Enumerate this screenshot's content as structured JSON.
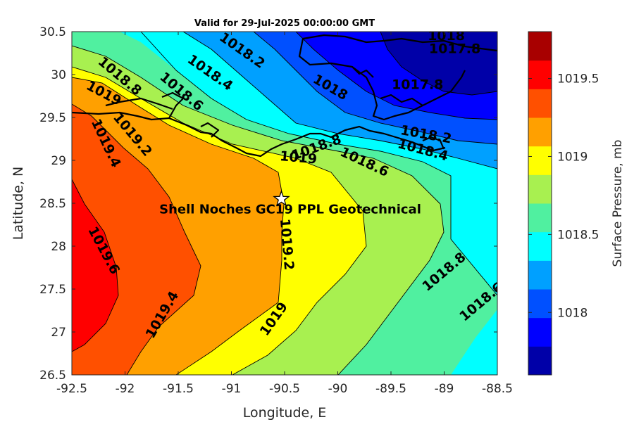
{
  "chart_data": {
    "type": "contour",
    "title": "Valid for 29-Jul-2025 00:00:00 GMT",
    "xlabel": "Longitude, E",
    "ylabel": "Latitude, N",
    "xlim": [
      -92.5,
      -88.5
    ],
    "ylim": [
      26.5,
      30.5
    ],
    "xticks": [
      -92.5,
      -92,
      -91.5,
      -91,
      -90.5,
      -90,
      -89.5,
      -89,
      -88.5
    ],
    "xtick_labels": [
      "-92.5",
      "-92",
      "-91.5",
      "-91",
      "-90.5",
      "-90",
      "-89.5",
      "-89",
      "-88.5"
    ],
    "yticks": [
      26.5,
      27,
      27.5,
      28,
      28.5,
      29,
      29.5,
      30,
      30.5
    ],
    "ytick_labels": [
      "26.5",
      "27",
      "27.5",
      "28",
      "28.5",
      "29",
      "29.5",
      "30",
      "30.5"
    ],
    "colorbar": {
      "label": "Surface Pressure, mb",
      "range": [
        1017.6,
        1019.8
      ],
      "ticks": [
        1018,
        1018.5,
        1019,
        1019.5
      ],
      "tick_labels": [
        "1018",
        "1018.5",
        "1019",
        "1019.5"
      ],
      "colors": [
        "#0000a8",
        "#0000ff",
        "#0050ff",
        "#00a0ff",
        "#00ffff",
        "#50f0a0",
        "#a8f050",
        "#ffff00",
        "#ffa000",
        "#ff5000",
        "#ff0000",
        "#a80000"
      ]
    },
    "contour_labels": [
      {
        "text": "1019.6",
        "lon": -92.2,
        "lat": 27.95,
        "angle": 62
      },
      {
        "text": "1019.4",
        "lon": -91.65,
        "lat": 27.2,
        "angle": -60
      },
      {
        "text": "1019.4",
        "lon": -92.18,
        "lat": 29.2,
        "angle": 65
      },
      {
        "text": "1019.2",
        "lon": -91.93,
        "lat": 29.3,
        "angle": 50
      },
      {
        "text": "1019.2",
        "lon": -90.48,
        "lat": 28.02,
        "angle": 85
      },
      {
        "text": "1019",
        "lon": -92.2,
        "lat": 29.78,
        "angle": 28
      },
      {
        "text": "1019",
        "lon": -90.6,
        "lat": 27.15,
        "angle": -55
      },
      {
        "text": "1019",
        "lon": -90.37,
        "lat": 29.03,
        "angle": 5
      },
      {
        "text": "1018.8",
        "lon": -92.05,
        "lat": 29.98,
        "angle": 40
      },
      {
        "text": "1018.8",
        "lon": -90.2,
        "lat": 29.15,
        "angle": -20
      },
      {
        "text": "1018.8",
        "lon": -89.0,
        "lat": 27.7,
        "angle": -40
      },
      {
        "text": "1018.6",
        "lon": -91.47,
        "lat": 29.8,
        "angle": 40
      },
      {
        "text": "1018.6",
        "lon": -89.75,
        "lat": 28.98,
        "angle": 25
      },
      {
        "text": "1018.6",
        "lon": -88.65,
        "lat": 27.35,
        "angle": -40
      },
      {
        "text": "1018.4",
        "lon": -91.2,
        "lat": 30.02,
        "angle": 35
      },
      {
        "text": "1018.4",
        "lon": -89.2,
        "lat": 29.12,
        "angle": 15
      },
      {
        "text": "1018.2",
        "lon": -90.9,
        "lat": 30.28,
        "angle": 35
      },
      {
        "text": "1018.2",
        "lon": -89.17,
        "lat": 29.3,
        "angle": 10
      },
      {
        "text": "1018",
        "lon": -90.07,
        "lat": 29.85,
        "angle": 30
      },
      {
        "text": "1018",
        "lon": -88.98,
        "lat": 30.45,
        "angle": 0
      },
      {
        "text": "1017.8",
        "lon": -88.9,
        "lat": 30.3,
        "angle": 0
      },
      {
        "text": "1017.8",
        "lon": -89.25,
        "lat": 29.88,
        "angle": 0
      }
    ],
    "marker": {
      "symbol": "star",
      "lon": -90.53,
      "lat": 28.55
    },
    "annotation": {
      "text": "Shell Noches   GC19 PPL  Geotechnical",
      "lon": -90.5,
      "lat": 28.43
    }
  }
}
